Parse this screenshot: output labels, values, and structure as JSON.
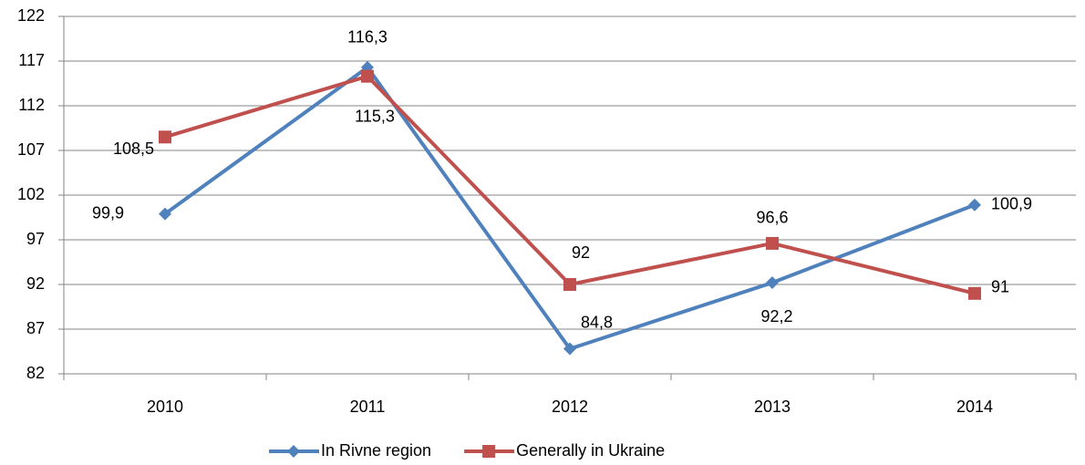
{
  "chart_data": {
    "type": "line",
    "categories": [
      "2010",
      "2011",
      "2012",
      "2013",
      "2014"
    ],
    "series": [
      {
        "name": "In Rivne region",
        "color": "#4f81bd",
        "marker": "diamond",
        "values": [
          99.9,
          116.3,
          84.8,
          92.2,
          100.9
        ],
        "value_labels": [
          "99,9",
          "116,3",
          "84,8",
          "92,2",
          "100,9"
        ]
      },
      {
        "name": "Generally in Ukraine",
        "color": "#c0504d",
        "marker": "square",
        "values": [
          108.5,
          115.3,
          92,
          96.6,
          91
        ],
        "value_labels": [
          "108,5",
          "115,3",
          "92",
          "96,6",
          "91"
        ]
      }
    ],
    "ylim": [
      82,
      122
    ],
    "yticks": [
      82,
      87,
      92,
      97,
      102,
      107,
      112,
      117,
      122
    ],
    "grid": true,
    "legend": "bottom"
  }
}
